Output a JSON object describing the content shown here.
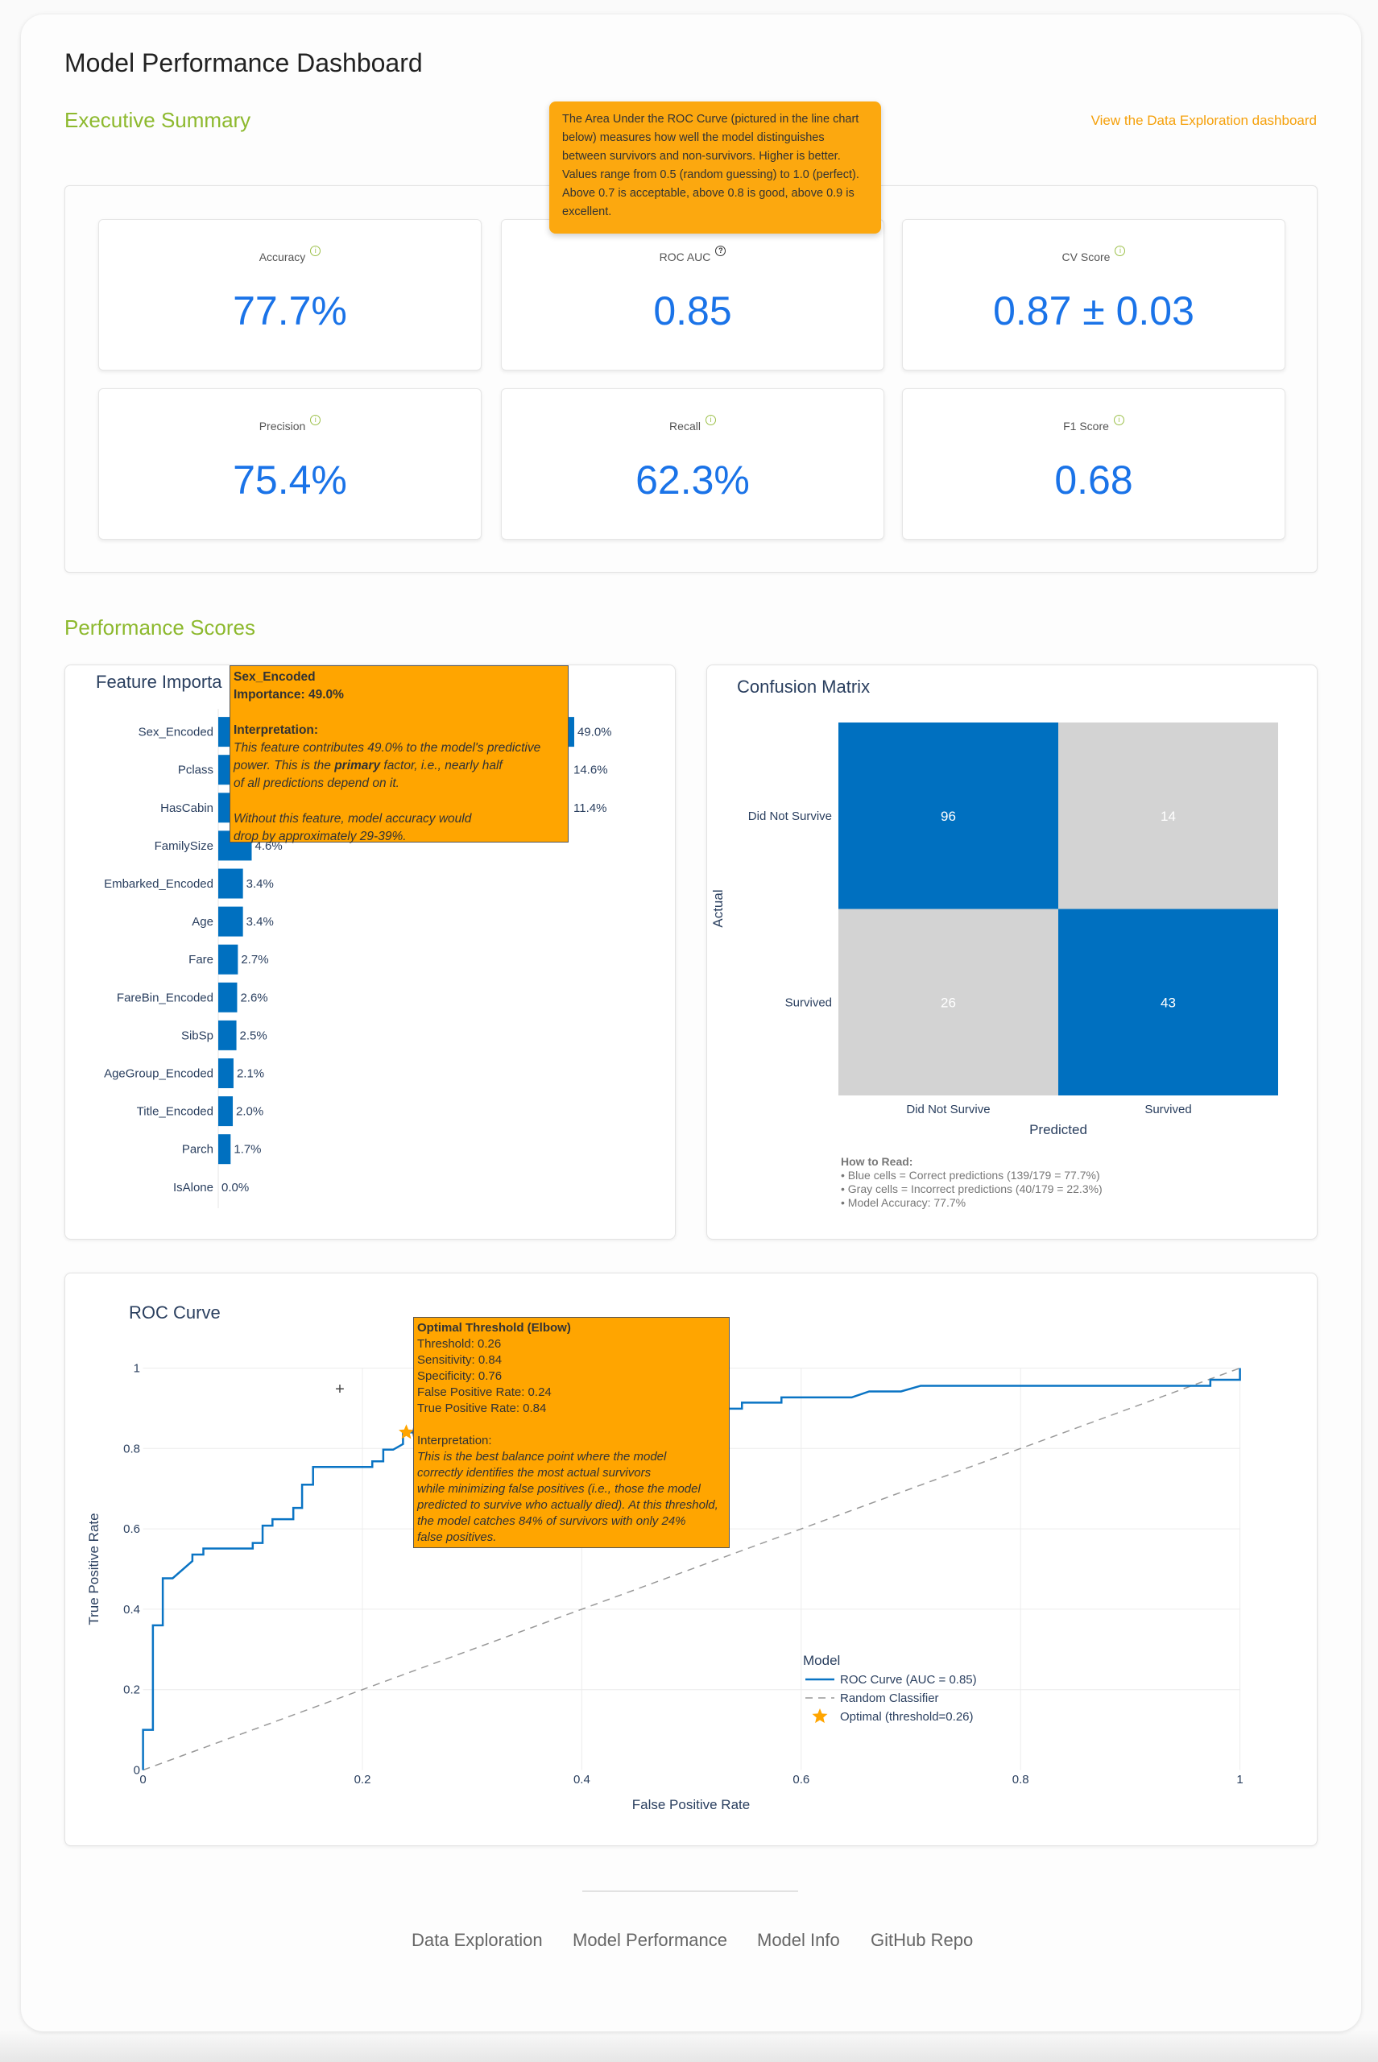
{
  "header": {
    "title": "Model Performance Dashboard",
    "section_summary": "Executive Summary",
    "data_link": "View the Data Exploration dashboard",
    "section_scores": "Performance Scores"
  },
  "metrics": [
    {
      "label": "Accuracy",
      "value": "77.7%",
      "icon": "info-icon"
    },
    {
      "label": "ROC AUC",
      "value": "0.85",
      "icon": "help-icon"
    },
    {
      "label": "CV Score",
      "value": "0.87 ± 0.03",
      "icon": "info-icon"
    },
    {
      "label": "Precision",
      "value": "75.4%",
      "icon": "info-icon"
    },
    {
      "label": "Recall",
      "value": "62.3%",
      "icon": "info-icon"
    },
    {
      "label": "F1 Score",
      "value": "0.68",
      "icon": "info-icon"
    }
  ],
  "auc_tooltip": "The Area Under the ROC Curve (pictured in the line chart below) measures how well the model distinguishes between survivors and non-survivors. Higher is better. Values range from 0.5 (random guessing) to 1.0 (perfect). Above 0.7 is acceptable, above 0.8 is good, above 0.9 is excellent.",
  "colors": {
    "accent_green": "#8db92e",
    "link_orange": "#f5a00a",
    "metric_blue": "#1a73e8",
    "bar_blue": "#0070c0",
    "cell_gray": "#d3d3d3",
    "tooltip_orange": "#ffa500"
  },
  "chart_data": [
    {
      "type": "bar",
      "orientation": "horizontal",
      "title": "Feature Importa",
      "categories": [
        "Sex_Encoded",
        "Pclass",
        "HasCabin",
        "FamilySize",
        "Embarked_Encoded",
        "Age",
        "Fare",
        "FareBin_Encoded",
        "SibSp",
        "AgeGroup_Encoded",
        "Title_Encoded",
        "Parch",
        "IsAlone"
      ],
      "values": [
        49.0,
        14.6,
        11.4,
        4.6,
        3.4,
        3.4,
        2.7,
        2.6,
        2.5,
        2.1,
        2.0,
        1.7,
        0.0
      ],
      "value_labels": [
        "49.0%",
        "14.6%",
        "11.4%",
        "4.6%",
        "3.4%",
        "3.4%",
        "2.7%",
        "2.6%",
        "2.5%",
        "2.1%",
        "2.0%",
        "1.7%",
        "0.0%"
      ],
      "tooltip": {
        "title": "Sex_Encoded",
        "importance": "Importance: 49.0%",
        "heading": "Interpretation:",
        "line1": "This feature contributes 49.0% to the model's predictive",
        "line2a": "power. This is the ",
        "line2b": "primary",
        "line2c": " factor, i.e., nearly half",
        "line3": "of all predictions depend on it.",
        "line4": "Without this feature, model accuracy would",
        "line5": "drop by approximately 29-39%."
      }
    },
    {
      "type": "heatmap",
      "title": "Confusion Matrix",
      "xlabel": "Predicted",
      "ylabel": "Actual",
      "x_categories": [
        "Did Not Survive",
        "Survived"
      ],
      "y_categories": [
        "Did Not Survive",
        "Survived"
      ],
      "values": [
        [
          96,
          14
        ],
        [
          26,
          43
        ]
      ],
      "notes": {
        "heading": "How to Read:",
        "lines": [
          "• Blue cells = Correct predictions (139/179 = 77.7%)",
          "• Gray cells = Incorrect predictions (40/179 = 22.3%)",
          "• Model Accuracy: 77.7%"
        ]
      }
    },
    {
      "type": "line",
      "title": "ROC Curve",
      "xlabel": "False Positive Rate",
      "ylabel": "True Positive Rate",
      "xlim": [
        0,
        1
      ],
      "ylim": [
        0,
        1
      ],
      "grid": true,
      "x_ticks": [
        "0",
        "0.2",
        "0.4",
        "0.6",
        "0.8",
        "1"
      ],
      "y_ticks": [
        "0",
        "0.2",
        "0.4",
        "0.6",
        "0.8",
        "1"
      ],
      "legend": {
        "title": "Model",
        "position": "bottom-right"
      },
      "series": [
        {
          "name": "ROC Curve (AUC = 0.85)",
          "points": [
            [
              0,
              0
            ],
            [
              0,
              0.1
            ],
            [
              0.009,
              0.1
            ],
            [
              0.009,
              0.36
            ],
            [
              0.018,
              0.36
            ],
            [
              0.018,
              0.477
            ],
            [
              0.027,
              0.477
            ],
            [
              0.045,
              0.52
            ],
            [
              0.045,
              0.536
            ],
            [
              0.055,
              0.536
            ],
            [
              0.055,
              0.551
            ],
            [
              0.1,
              0.551
            ],
            [
              0.1,
              0.565
            ],
            [
              0.109,
              0.565
            ],
            [
              0.109,
              0.608
            ],
            [
              0.118,
              0.608
            ],
            [
              0.118,
              0.624
            ],
            [
              0.137,
              0.624
            ],
            [
              0.137,
              0.652
            ],
            [
              0.145,
              0.652
            ],
            [
              0.145,
              0.71
            ],
            [
              0.155,
              0.71
            ],
            [
              0.155,
              0.754
            ],
            [
              0.209,
              0.754
            ],
            [
              0.209,
              0.768
            ],
            [
              0.219,
              0.768
            ],
            [
              0.219,
              0.797
            ],
            [
              0.228,
              0.797
            ],
            [
              0.237,
              0.811
            ],
            [
              0.237,
              0.84
            ],
            [
              0.3,
              0.84
            ],
            [
              0.3,
              0.87
            ],
            [
              0.45,
              0.87
            ],
            [
              0.45,
              0.899
            ],
            [
              0.546,
              0.899
            ],
            [
              0.546,
              0.914
            ],
            [
              0.582,
              0.914
            ],
            [
              0.582,
              0.927
            ],
            [
              0.646,
              0.927
            ],
            [
              0.662,
              0.942
            ],
            [
              0.691,
              0.942
            ],
            [
              0.709,
              0.956
            ],
            [
              0.973,
              0.956
            ],
            [
              0.973,
              0.971
            ],
            [
              1,
              0.971
            ],
            [
              1,
              1
            ]
          ]
        },
        {
          "name": "Random Classifier",
          "points": [
            [
              0,
              0
            ],
            [
              1,
              1
            ]
          ]
        },
        {
          "name": "Optimal (threshold=0.26)",
          "points": [
            [
              0.24,
              0.84
            ]
          ]
        }
      ],
      "tooltip": {
        "title": "Optimal Threshold (Elbow)",
        "lines": [
          "Threshold: 0.26",
          "Sensitivity: 0.84",
          "Specificity: 0.76",
          "False Positive Rate: 0.24",
          "True Positive Rate: 0.84"
        ],
        "heading": "Interpretation:",
        "italic": [
          "This is the best balance point where the model",
          "correctly identifies the most actual survivors",
          "while minimizing false positives (i.e., those the model",
          "predicted to survive who actually died). At this threshold,",
          "the model catches 84% of survivors with only 24%",
          "false positives."
        ]
      }
    }
  ],
  "footer": {
    "links": [
      "Data Exploration",
      "Model Performance",
      "Model Info",
      "GitHub Repo"
    ]
  }
}
